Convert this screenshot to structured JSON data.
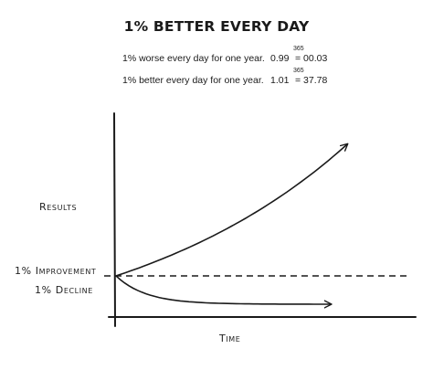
{
  "title": "1% BETTER EVERY DAY",
  "equations": [
    {
      "label": "1% worse every day for one year.",
      "base": "0.99",
      "exponent": "365",
      "result": "= 00.03"
    },
    {
      "label": "1% better every day for one year.",
      "base": "1.01",
      "exponent": "365",
      "result": "= 37.78"
    }
  ],
  "chart_data": {
    "type": "line",
    "xlabel": "Time",
    "ylabel": "Results",
    "baseline_style": "dashed",
    "series": [
      {
        "name": "1% Improvement",
        "x": [
          0,
          20,
          40,
          60,
          80,
          100
        ],
        "y": [
          1,
          1.22,
          1.49,
          1.82,
          2.22,
          2.7
        ],
        "arrow": true
      },
      {
        "name": "1% Decline",
        "x": [
          0,
          20,
          40,
          60,
          80,
          100
        ],
        "y": [
          1,
          0.82,
          0.67,
          0.55,
          0.45,
          0.37
        ],
        "arrow": true
      }
    ],
    "grid": false,
    "axis_values_shown": false
  },
  "colors": {
    "ink": "#1a1a1a"
  }
}
